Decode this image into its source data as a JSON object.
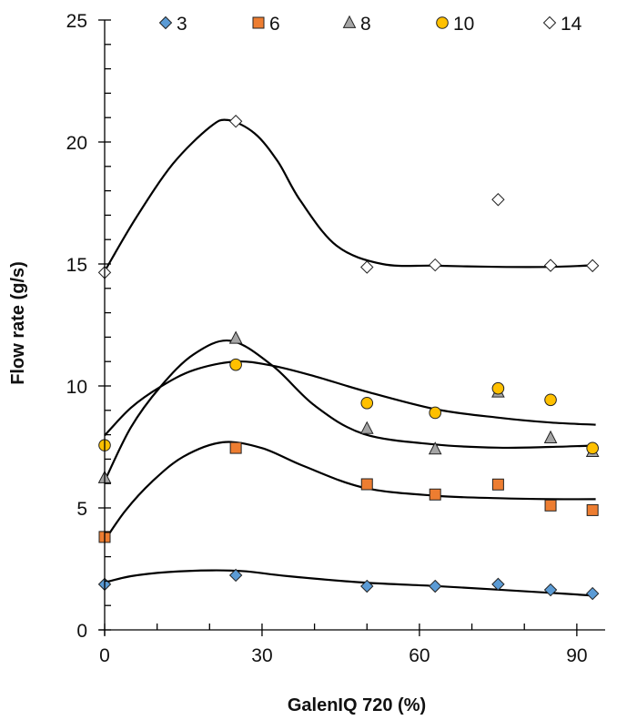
{
  "chart_data": {
    "type": "scatter",
    "title": "",
    "xlabel": "GalenIQ 720 (%)",
    "ylabel": "Flow rate (g/s)",
    "xlim": [
      0,
      95.4
    ],
    "ylim": [
      0,
      25
    ],
    "x_ticks": [
      0,
      30,
      60,
      90
    ],
    "x_minor_step": 10,
    "y_ticks": [
      0,
      5,
      10,
      15,
      20,
      25
    ],
    "y_minor_step": 1,
    "grid": false,
    "legend": {
      "position": "top",
      "orientation": "horizontal"
    },
    "x": [
      0,
      25,
      50,
      63,
      75,
      85,
      93
    ],
    "series": [
      {
        "name": "3",
        "marker": "diamond",
        "color": "#5B9BD5",
        "values": [
          1.87,
          2.24,
          1.79,
          1.79,
          1.87,
          1.64,
          1.49
        ],
        "fit": [
          [
            0,
            1.94
          ],
          [
            5,
            2.2
          ],
          [
            12,
            2.37
          ],
          [
            20.5,
            2.44
          ],
          [
            27,
            2.4
          ],
          [
            35,
            2.2
          ],
          [
            49.4,
            1.94
          ],
          [
            63,
            1.8
          ],
          [
            75,
            1.65
          ],
          [
            85,
            1.52
          ],
          [
            93.6,
            1.4
          ]
        ]
      },
      {
        "name": "6",
        "marker": "square",
        "color": "#ED7D31",
        "values": [
          3.81,
          7.46,
          5.97,
          5.55,
          5.96,
          5.1,
          4.91
        ],
        "fit": [
          [
            0,
            3.66
          ],
          [
            4,
            4.9
          ],
          [
            9,
            6.07
          ],
          [
            15,
            7.1
          ],
          [
            22.5,
            7.69
          ],
          [
            30,
            7.45
          ],
          [
            37.8,
            6.73
          ],
          [
            49.4,
            5.83
          ],
          [
            63,
            5.5
          ],
          [
            75,
            5.4
          ],
          [
            85,
            5.36
          ],
          [
            93.6,
            5.36
          ]
        ]
      },
      {
        "name": "8",
        "marker": "triangle",
        "color": "#A5A5A5",
        "values": [
          6.23,
          11.95,
          8.25,
          7.41,
          9.75,
          7.87,
          7.31
        ],
        "fit": [
          [
            0,
            6.1
          ],
          [
            5,
            8.3
          ],
          [
            10.6,
            9.96
          ],
          [
            17,
            11.3
          ],
          [
            24,
            11.85
          ],
          [
            32,
            10.83
          ],
          [
            40,
            9.2
          ],
          [
            49.4,
            8.03
          ],
          [
            63,
            7.6
          ],
          [
            75,
            7.47
          ],
          [
            85,
            7.5
          ],
          [
            93.6,
            7.56
          ]
        ]
      },
      {
        "name": "10",
        "marker": "circle",
        "color": "#FFC000",
        "values": [
          7.57,
          10.87,
          9.3,
          8.9,
          9.9,
          9.43,
          7.45
        ],
        "fit": [
          [
            0,
            7.97
          ],
          [
            5,
            9.1
          ],
          [
            10.6,
            9.96
          ],
          [
            17,
            10.65
          ],
          [
            25,
            11.0
          ],
          [
            32,
            10.83
          ],
          [
            40,
            10.4
          ],
          [
            49.4,
            9.8
          ],
          [
            63,
            9.05
          ],
          [
            75,
            8.7
          ],
          [
            85,
            8.5
          ],
          [
            93.6,
            8.41
          ]
        ]
      },
      {
        "name": "14",
        "marker": "diamond-open",
        "color": "#FFFFFF",
        "values": [
          14.65,
          20.85,
          14.87,
          14.96,
          17.64,
          14.94,
          14.93
        ],
        "fit": [
          [
            0,
            14.7
          ],
          [
            6,
            16.9
          ],
          [
            13,
            19.1
          ],
          [
            20,
            20.6
          ],
          [
            23.5,
            20.9
          ],
          [
            28.6,
            20.35
          ],
          [
            33,
            19.2
          ],
          [
            37.3,
            17.6
          ],
          [
            44.2,
            15.75
          ],
          [
            52.9,
            15.0
          ],
          [
            63,
            14.93
          ],
          [
            75,
            14.88
          ],
          [
            85,
            14.88
          ],
          [
            93.6,
            14.95
          ]
        ]
      }
    ]
  }
}
